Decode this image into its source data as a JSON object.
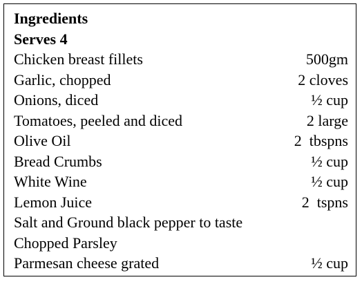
{
  "recipe": {
    "title": "Ingredients",
    "serves": "Serves 4",
    "ingredients": [
      {
        "name": "Chicken breast fillets",
        "quantity": "500gm"
      },
      {
        "name": "Garlic, chopped",
        "quantity": "2 cloves"
      },
      {
        "name": "Onions, diced",
        "quantity": "½ cup"
      },
      {
        "name": "Tomatoes, peeled and diced",
        "quantity": "2 large"
      },
      {
        "name": "Olive Oil",
        "quantity": "2  tbspns"
      },
      {
        "name": "Bread Crumbs",
        "quantity": "½ cup"
      },
      {
        "name": "White Wine",
        "quantity": "½ cup"
      },
      {
        "name": "Lemon Juice",
        "quantity": "2  tspns"
      },
      {
        "name": "Salt and Ground black pepper to taste",
        "quantity": ""
      },
      {
        "name": "Chopped Parsley",
        "quantity": ""
      },
      {
        "name": "Parmesan cheese grated",
        "quantity": "½ cup"
      }
    ]
  }
}
